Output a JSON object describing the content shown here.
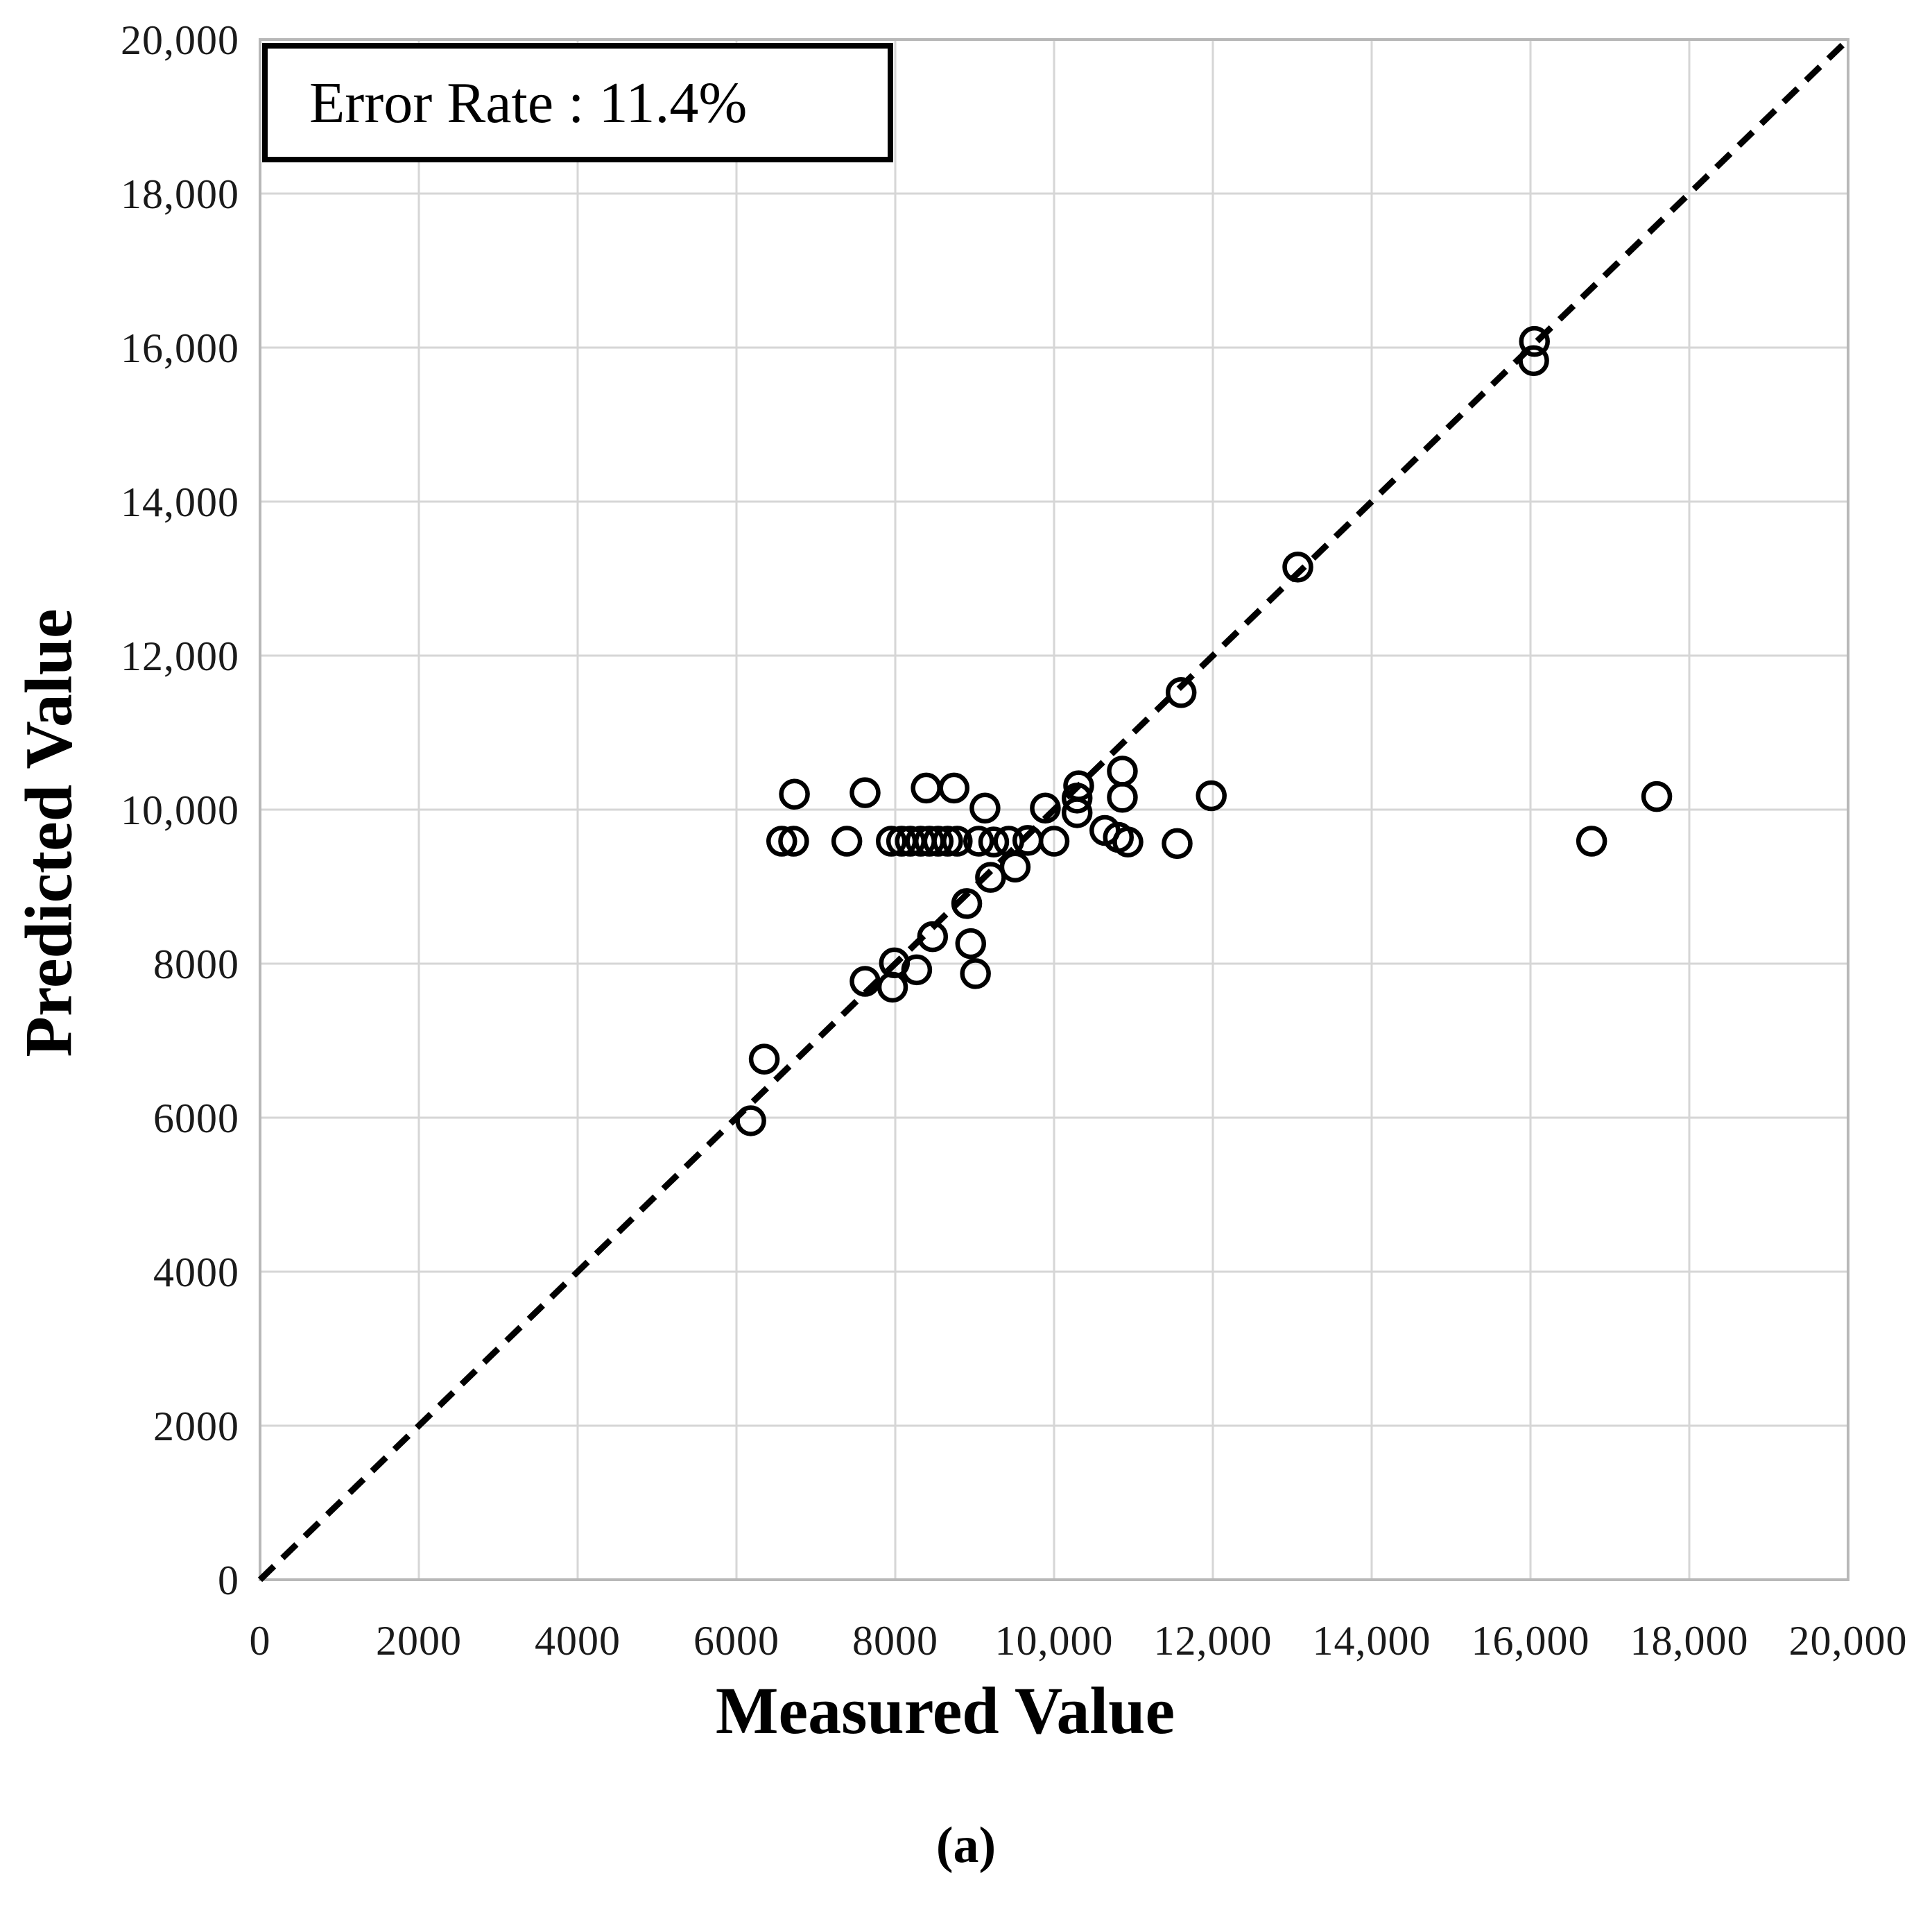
{
  "caption": "(a)",
  "chart_data": {
    "type": "scatter",
    "title": "",
    "xlabel": "Measured Value",
    "ylabel": "Predicted Value",
    "annotation": "Error Rate : 11.4%",
    "xlim": [
      0,
      20000
    ],
    "ylim": [
      0,
      20000
    ],
    "tick_step": 2000,
    "x_tick_labels": [
      "0",
      "2000",
      "4000",
      "6000",
      "8000",
      "10,000",
      "12,000",
      "14,000",
      "16,000",
      "18,000",
      "20,000"
    ],
    "y_tick_labels": [
      "0",
      "2000",
      "4000",
      "6000",
      "8000",
      "10,000",
      "12,000",
      "14,000",
      "16,000",
      "18,000",
      "20,000"
    ],
    "grid": true,
    "gridline_color": "#d6d6d6",
    "axis_line_color": "#b8b8b8",
    "marker": {
      "shape": "open-circle",
      "color": "#000000",
      "radius_px": 19,
      "stroke_px": 6.5
    },
    "reference_line": {
      "label": "y = x",
      "style": "dashed",
      "color": "#000000",
      "from": [
        0,
        0
      ],
      "to": [
        20000,
        20000
      ]
    },
    "series": [
      {
        "name": "Predicted vs Measured",
        "points": [
          [
            6730,
            10200
          ],
          [
            7620,
            10220
          ],
          [
            8390,
            10280
          ],
          [
            8740,
            10280
          ],
          [
            9130,
            10020
          ],
          [
            9890,
            10020
          ],
          [
            10310,
            10310
          ],
          [
            10290,
            10150
          ],
          [
            10290,
            9960
          ],
          [
            10860,
            10500
          ],
          [
            10860,
            10160
          ],
          [
            11980,
            10180
          ],
          [
            17590,
            10170
          ],
          [
            6570,
            9590
          ],
          [
            6720,
            9590
          ],
          [
            7390,
            9590
          ],
          [
            7950,
            9590
          ],
          [
            8080,
            9590
          ],
          [
            8190,
            9590
          ],
          [
            8320,
            9590
          ],
          [
            8430,
            9590
          ],
          [
            8540,
            9590
          ],
          [
            8660,
            9590
          ],
          [
            8780,
            9590
          ],
          [
            9050,
            9590
          ],
          [
            9240,
            9580
          ],
          [
            9430,
            9590
          ],
          [
            9670,
            9600
          ],
          [
            10000,
            9590
          ],
          [
            10640,
            9730
          ],
          [
            10810,
            9640
          ],
          [
            10930,
            9580
          ],
          [
            11550,
            9560
          ],
          [
            16770,
            9590
          ],
          [
            6180,
            5960
          ],
          [
            6350,
            6760
          ],
          [
            7620,
            7770
          ],
          [
            7965,
            7695
          ],
          [
            7990,
            8010
          ],
          [
            8270,
            7920
          ],
          [
            8470,
            8350
          ],
          [
            8900,
            8780
          ],
          [
            8950,
            8260
          ],
          [
            9010,
            7870
          ],
          [
            9200,
            9120
          ],
          [
            9510,
            9255
          ],
          [
            11600,
            11520
          ],
          [
            13070,
            13150
          ],
          [
            16040,
            15830
          ],
          [
            16050,
            16080
          ]
        ]
      }
    ]
  }
}
